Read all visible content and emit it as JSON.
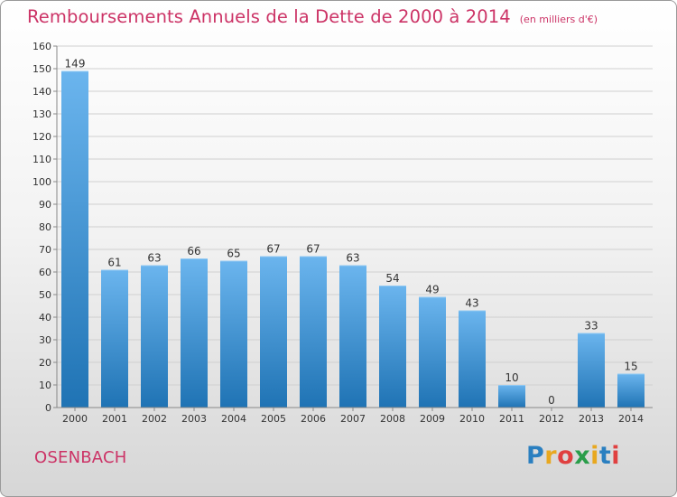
{
  "title": "Remboursements Annuels de la Dette de 2000 à 2014",
  "unit_note": "(en milliers d'€)",
  "commune": "OSENBACH",
  "logo": {
    "letters": [
      "P",
      "r",
      "o",
      "x",
      "i",
      "t",
      "i"
    ],
    "colors": [
      "#2a7fc0",
      "#e8a820",
      "#e04040",
      "#2a9d4a",
      "#e8a820",
      "#2a7fc0",
      "#e04040"
    ]
  },
  "colors": {
    "accent": "#cc3366",
    "bar_top": "#6bb5ee",
    "bar_bottom": "#1f73b4",
    "grid": "#d0d0d0",
    "axis_text": "#333333"
  },
  "chart_data": {
    "type": "bar",
    "categories": [
      "2000",
      "2001",
      "2002",
      "2003",
      "2004",
      "2005",
      "2006",
      "2007",
      "2008",
      "2009",
      "2010",
      "2011",
      "2012",
      "2013",
      "2014"
    ],
    "values": [
      149,
      61,
      63,
      66,
      65,
      67,
      67,
      63,
      54,
      49,
      43,
      10,
      0,
      33,
      15
    ],
    "data_labels": [
      "149",
      "61",
      "63",
      "66",
      "65",
      "67",
      "67",
      "63",
      "54",
      "49",
      "43",
      "10",
      "0",
      "33",
      "15"
    ],
    "ylim": [
      0,
      160
    ],
    "yticks": [
      0,
      10,
      20,
      30,
      40,
      50,
      60,
      70,
      80,
      90,
      100,
      110,
      120,
      130,
      140,
      150,
      160
    ],
    "ytick_labels": [
      "0",
      "10",
      "20",
      "30",
      "40",
      "50",
      "60",
      "70",
      "80",
      "90",
      "100",
      "110",
      "120",
      "130",
      "140",
      "150",
      "160"
    ],
    "grid": true
  }
}
